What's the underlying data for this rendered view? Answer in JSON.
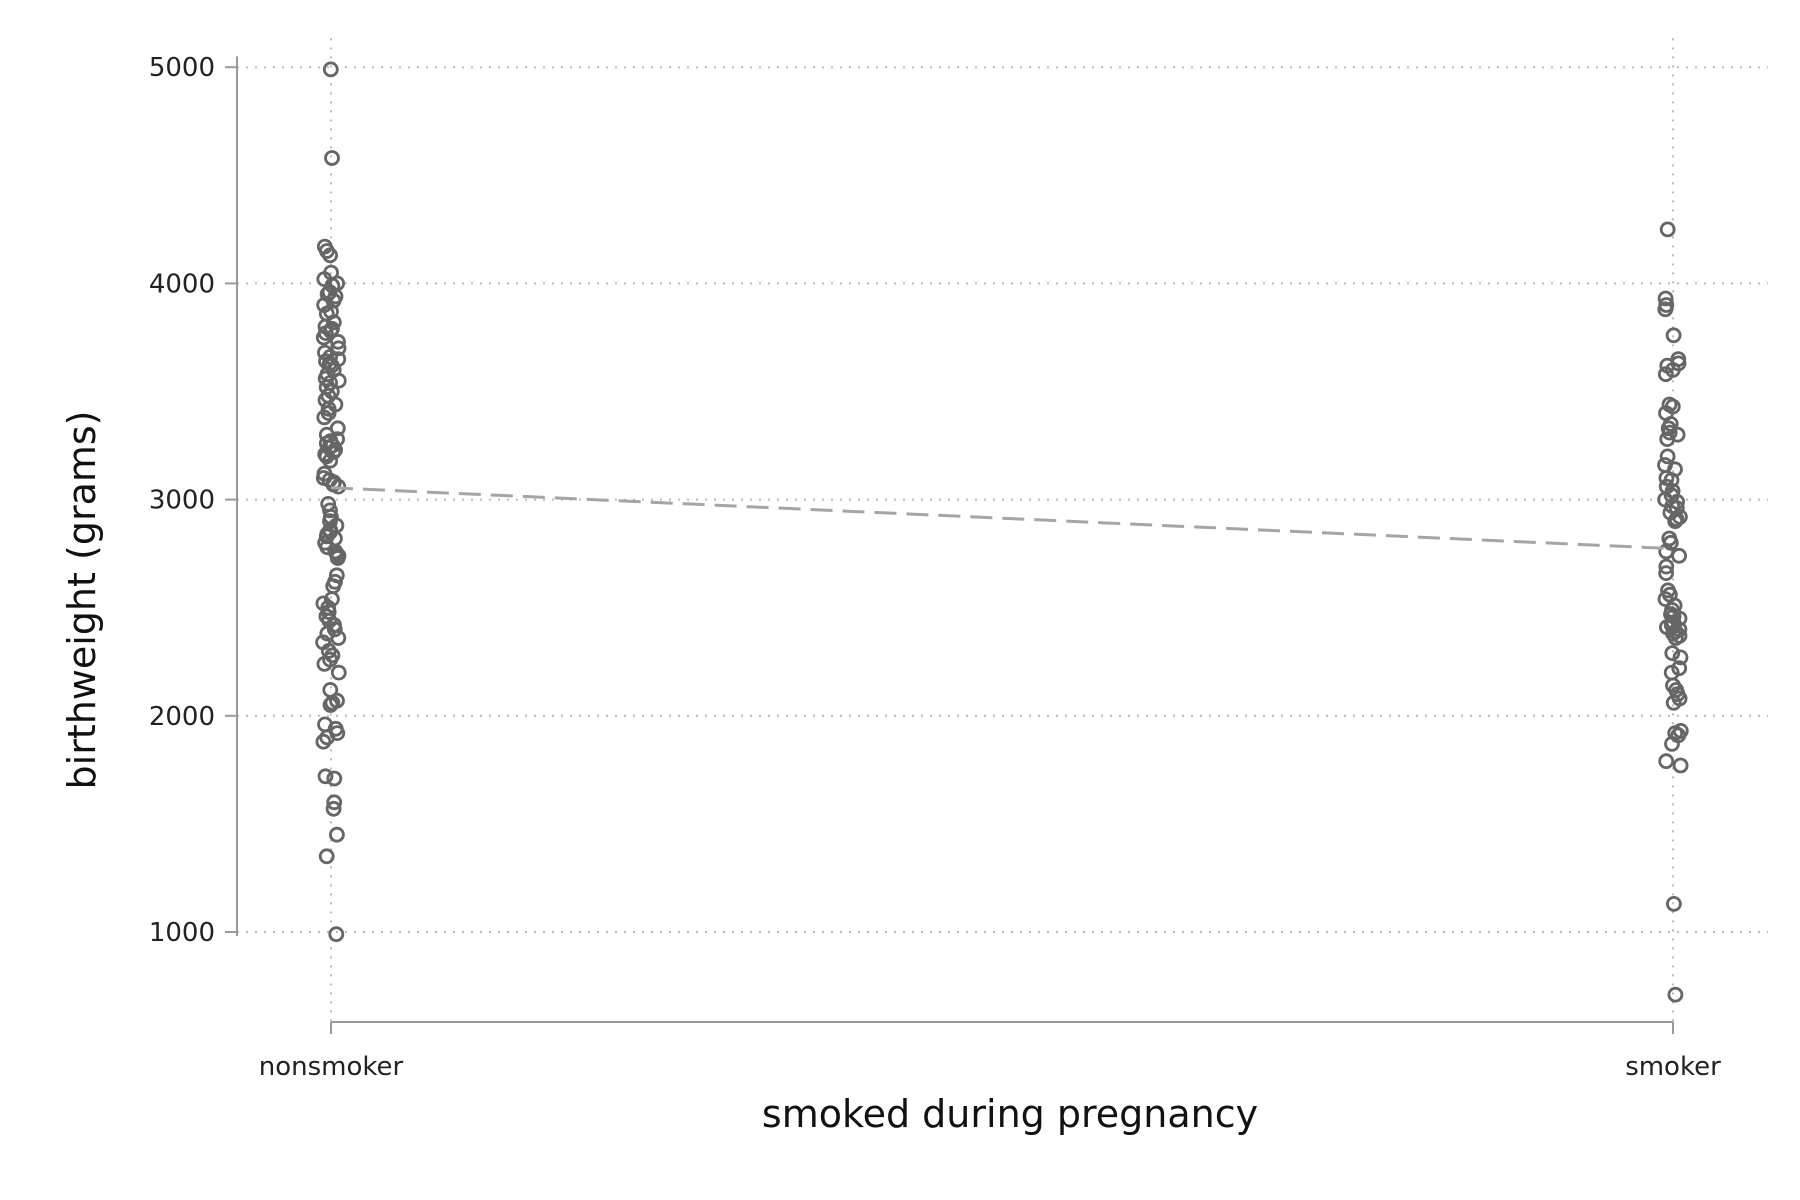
{
  "chart_data": {
    "type": "scatter",
    "xlabel": "smoked during pregnancy",
    "ylabel": "birthweight (grams)",
    "categories": [
      "nonsmoker",
      "smoker"
    ],
    "yticks": [
      1000,
      2000,
      3000,
      4000,
      5000
    ],
    "ylim": [
      600,
      5050
    ],
    "grid": true,
    "series": [
      {
        "category": "nonsmoker",
        "values": [
          4990,
          4580,
          4170,
          4150,
          4130,
          4050,
          4020,
          4000,
          3990,
          3960,
          3950,
          3940,
          3920,
          3900,
          3870,
          3860,
          3820,
          3800,
          3790,
          3780,
          3770,
          3750,
          3730,
          3700,
          3680,
          3660,
          3650,
          3640,
          3630,
          3620,
          3600,
          3580,
          3560,
          3550,
          3540,
          3520,
          3500,
          3480,
          3460,
          3440,
          3420,
          3400,
          3380,
          3330,
          3300,
          3280,
          3270,
          3260,
          3250,
          3240,
          3230,
          3220,
          3210,
          3200,
          3180,
          3120,
          3100,
          3090,
          3080,
          3070,
          3060,
          2980,
          2950,
          2920,
          2900,
          2880,
          2860,
          2850,
          2840,
          2830,
          2820,
          2800,
          2780,
          2760,
          2750,
          2740,
          2730,
          2650,
          2620,
          2600,
          2540,
          2520,
          2500,
          2480,
          2460,
          2440,
          2420,
          2400,
          2380,
          2360,
          2340,
          2300,
          2280,
          2260,
          2240,
          2200,
          2120,
          2070,
          2060,
          2050,
          1960,
          1940,
          1920,
          1900,
          1880,
          1720,
          1710,
          1600,
          1570,
          1450,
          1350,
          990
        ]
      },
      {
        "category": "smoker",
        "values": [
          4250,
          3930,
          3900,
          3880,
          3760,
          3650,
          3630,
          3620,
          3600,
          3580,
          3440,
          3430,
          3400,
          3350,
          3330,
          3310,
          3300,
          3280,
          3200,
          3160,
          3140,
          3100,
          3090,
          3060,
          3040,
          3020,
          3000,
          2990,
          2970,
          2960,
          2940,
          2920,
          2910,
          2900,
          2820,
          2800,
          2760,
          2740,
          2690,
          2660,
          2580,
          2560,
          2540,
          2510,
          2490,
          2470,
          2460,
          2450,
          2430,
          2420,
          2410,
          2400,
          2390,
          2380,
          2370,
          2360,
          2290,
          2270,
          2220,
          2200,
          2140,
          2120,
          2100,
          2080,
          2060,
          1930,
          1920,
          1910,
          1870,
          1790,
          1770,
          1130,
          710
        ]
      }
    ],
    "fit_line": {
      "nonsmoker": 3055,
      "smoker": 2773
    },
    "colors": {
      "marker": "#666666",
      "grid": "#bbbbbb",
      "axis": "#999999",
      "fit": "#a5a5a5"
    }
  }
}
